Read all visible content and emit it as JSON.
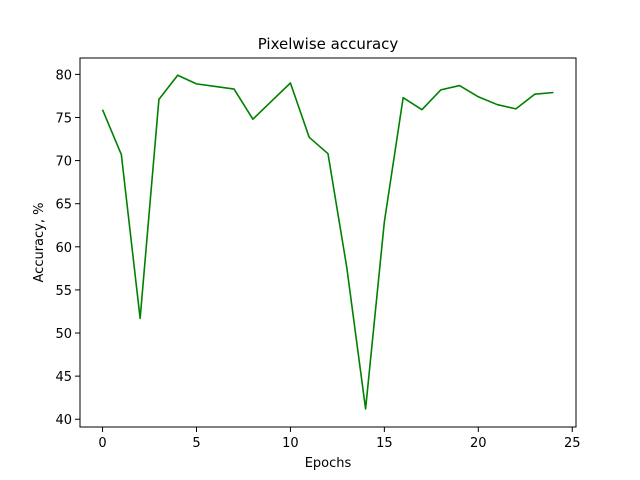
{
  "chart_data": {
    "type": "line",
    "title": "Pixelwise accuracy",
    "xlabel": "Epochs",
    "ylabel": "Accuracy, %",
    "xlim": [
      -1.2,
      25.2
    ],
    "ylim": [
      39.1,
      81.9
    ],
    "xticks": [
      0,
      5,
      10,
      15,
      20,
      25
    ],
    "yticks": [
      40,
      45,
      50,
      55,
      60,
      65,
      70,
      75,
      80
    ],
    "grid": false,
    "series": [
      {
        "color": "#008000",
        "x": [
          0,
          1,
          2,
          3,
          4,
          5,
          6,
          7,
          8,
          9,
          10,
          11,
          12,
          13,
          14,
          15,
          16,
          17,
          18,
          19,
          20,
          21,
          22,
          23,
          24
        ],
        "y": [
          75.9,
          70.7,
          51.7,
          77.1,
          79.9,
          78.9,
          78.6,
          78.3,
          74.8,
          76.9,
          79.0,
          72.7,
          70.8,
          57.6,
          41.2,
          62.9,
          77.3,
          75.9,
          78.2,
          78.7,
          77.4,
          76.5,
          76.0,
          77.7,
          77.9
        ]
      }
    ]
  }
}
